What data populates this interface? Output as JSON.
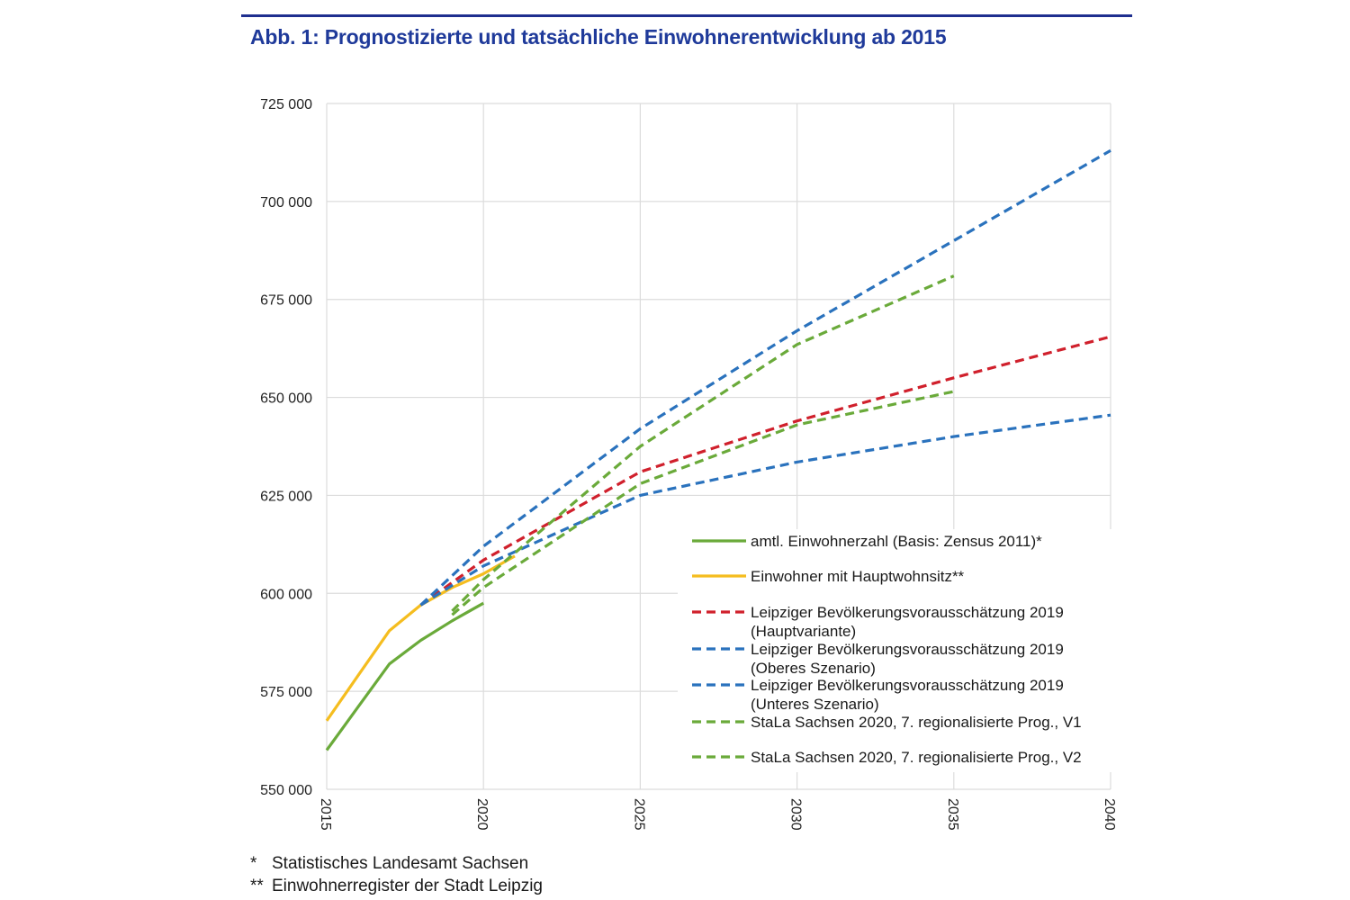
{
  "chart_data": {
    "type": "line",
    "title": "Abb. 1: Prognostizierte und tatsächliche Einwohnerentwicklung ab 2015",
    "xlabel": "",
    "ylabel": "",
    "xlim": [
      2015,
      2040
    ],
    "ylim": [
      550000,
      725000
    ],
    "x_ticks": [
      "2015",
      "2020",
      "2025",
      "2030",
      "2035",
      "2040"
    ],
    "y_ticks": [
      "550 000",
      "575 000",
      "600 000",
      "625 000",
      "650 000",
      "675 000",
      "700 000",
      "725 000"
    ],
    "grid": true,
    "legend_position": "bottom-right",
    "series": [
      {
        "name": "amtl. Einwohnerzahl (Basis: Zensus 2011)*",
        "color": "#6aaa3a",
        "style": "solid",
        "x": [
          2015,
          2016,
          2017,
          2018,
          2019,
          2020
        ],
        "y": [
          560000,
          571000,
          582000,
          588000,
          593000,
          597500
        ]
      },
      {
        "name": "Einwohner mit Hauptwohnsitz**",
        "color": "#f5bd1f",
        "style": "solid",
        "x": [
          2015,
          2016,
          2017,
          2018,
          2019,
          2020,
          2021
        ],
        "y": [
          567500,
          579000,
          590500,
          597000,
          601500,
          605000,
          609500
        ]
      },
      {
        "name": "Leipziger Bevölkerungsvorausschätzung 2019 (Hauptvariante)",
        "color": "#d0202c",
        "style": "dashed",
        "x": [
          2018,
          2020,
          2025,
          2030,
          2035,
          2040
        ],
        "y": [
          597000,
          608500,
          631000,
          644000,
          655000,
          665500
        ]
      },
      {
        "name": "Leipziger Bevölkerungsvorausschätzung 2019 (Oberes Szenario)",
        "color": "#2a72bd",
        "style": "dashed",
        "x": [
          2018,
          2020,
          2025,
          2030,
          2035,
          2040
        ],
        "y": [
          597000,
          612000,
          642000,
          667000,
          690000,
          713000
        ]
      },
      {
        "name": "Leipziger Bevölkerungsvorausschätzung 2019 (Unteres Szenario)",
        "color": "#2a72bd",
        "style": "dashed",
        "x": [
          2018,
          2020,
          2025,
          2030,
          2035,
          2040
        ],
        "y": [
          597000,
          607000,
          625000,
          633500,
          640000,
          645500
        ]
      },
      {
        "name": "StaLa Sachsen 2020, 7. regionalisierte Prog., V1",
        "color": "#6aaa3a",
        "style": "dashed",
        "x": [
          2019,
          2020,
          2025,
          2030,
          2035
        ],
        "y": [
          595500,
          603500,
          637500,
          663500,
          681000
        ]
      },
      {
        "name": "StaLa Sachsen 2020, 7. regionalisierte Prog., V2",
        "color": "#6aaa3a",
        "style": "dashed",
        "x": [
          2019,
          2020,
          2025,
          2030,
          2035
        ],
        "y": [
          594500,
          601500,
          628000,
          643000,
          651500
        ]
      }
    ],
    "legend": [
      {
        "lines": [
          "amtl. Einwohnerzahl (Basis: Zensus 2011)*"
        ],
        "color": "#6aaa3a",
        "style": "solid"
      },
      {
        "lines": [
          "Einwohner mit Hauptwohnsitz**"
        ],
        "color": "#f5bd1f",
        "style": "solid"
      },
      {
        "lines": [
          "Leipziger Bevölkerungsvorausschätzung 2019",
          "(Hauptvariante)"
        ],
        "color": "#d0202c",
        "style": "dashed"
      },
      {
        "lines": [
          "Leipziger Bevölkerungsvorausschätzung 2019",
          "(Oberes Szenario)"
        ],
        "color": "#2a72bd",
        "style": "dashed"
      },
      {
        "lines": [
          "Leipziger Bevölkerungsvorausschätzung 2019",
          "(Unteres Szenario)"
        ],
        "color": "#2a72bd",
        "style": "dashed"
      },
      {
        "lines": [
          "StaLa Sachsen 2020, 7. regionalisierte Prog., V1"
        ],
        "color": "#6aaa3a",
        "style": "dashed"
      },
      {
        "lines": [
          "StaLa Sachsen 2020, 7. regionalisierte Prog., V2"
        ],
        "color": "#6aaa3a",
        "style": "dashed"
      }
    ]
  },
  "footnotes": [
    {
      "mark": "*",
      "text": "Statistisches Landesamt Sachsen"
    },
    {
      "mark": "**",
      "text": "Einwohnerregister der Stadt Leipzig"
    }
  ],
  "colors": {
    "title": "#1f3a9a",
    "rule": "#1f2f8f",
    "grid": "#dcdcdc"
  }
}
